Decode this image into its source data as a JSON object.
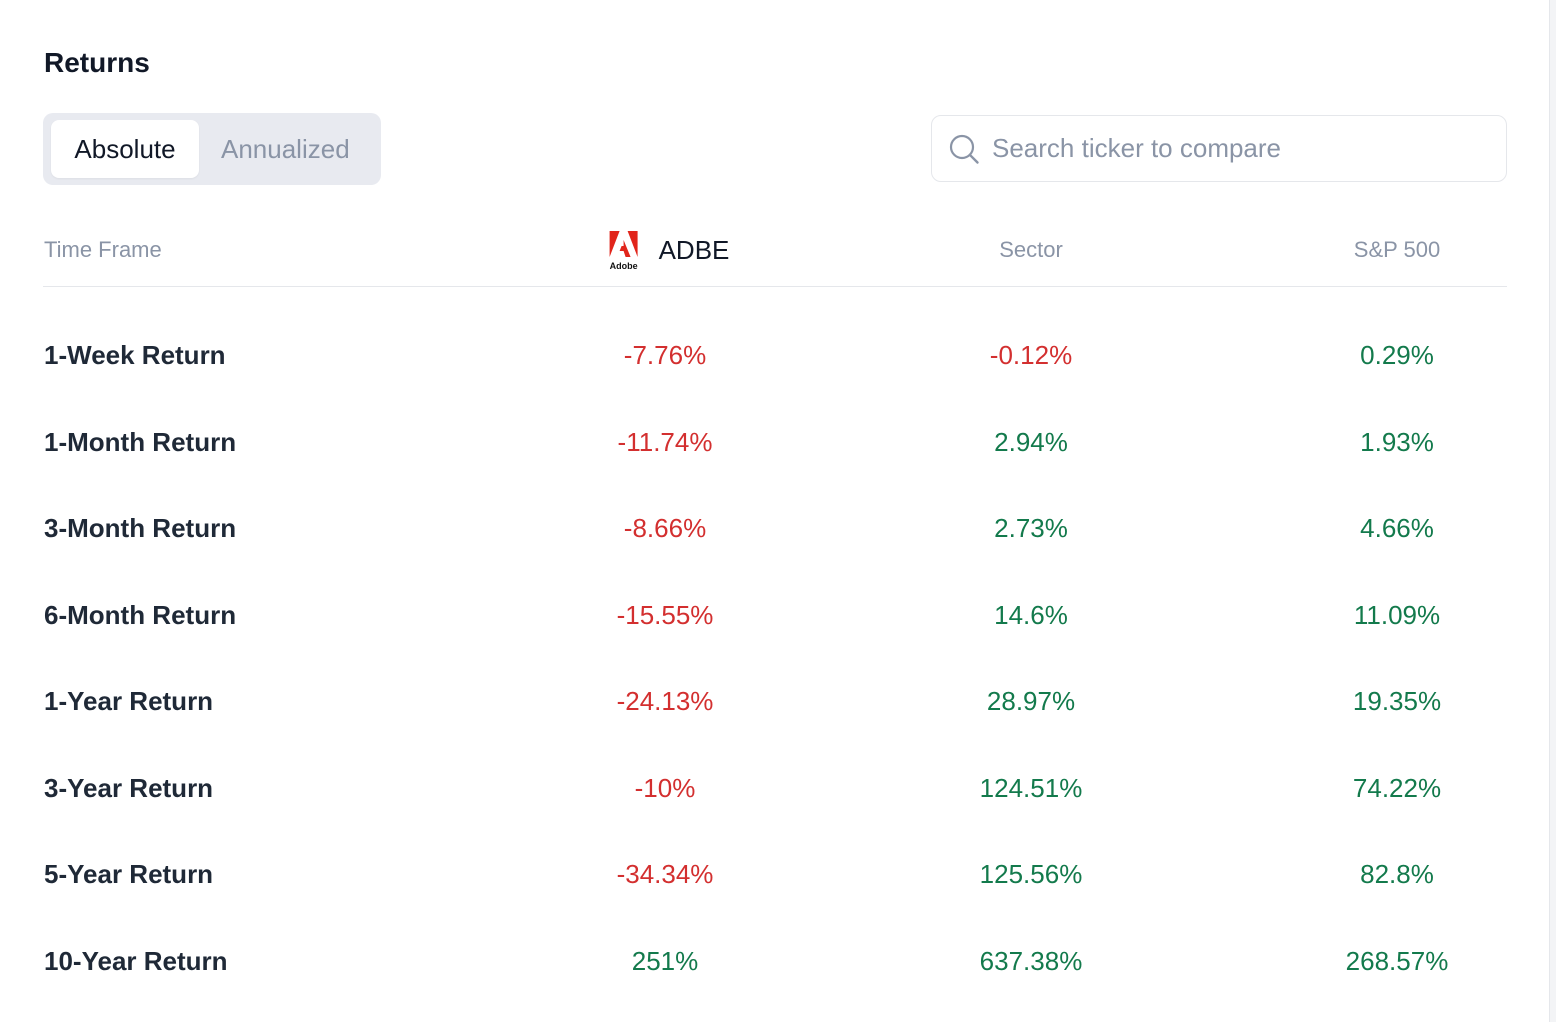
{
  "title": "Returns",
  "toggle": {
    "options": [
      "Absolute",
      "Annualized"
    ],
    "selected": "Absolute"
  },
  "search": {
    "placeholder": "Search ticker to compare",
    "value": "",
    "icon": "search-icon"
  },
  "table": {
    "headers": {
      "timeframe": "Time Frame",
      "ticker": "ADBE",
      "ticker_logo_text": "Adobe",
      "sector": "Sector",
      "index": "S&P 500"
    },
    "colors": {
      "negative": "#d32f2f",
      "positive": "#137a4c",
      "logo": "#e1251b"
    },
    "rows": [
      {
        "label": "1-Week Return",
        "ticker": "-7.76%",
        "sector": "-0.12%",
        "index": "0.29%"
      },
      {
        "label": "1-Month Return",
        "ticker": "-11.74%",
        "sector": "2.94%",
        "index": "1.93%"
      },
      {
        "label": "3-Month Return",
        "ticker": "-8.66%",
        "sector": "2.73%",
        "index": "4.66%"
      },
      {
        "label": "6-Month Return",
        "ticker": "-15.55%",
        "sector": "14.6%",
        "index": "11.09%"
      },
      {
        "label": "1-Year Return",
        "ticker": "-24.13%",
        "sector": "28.97%",
        "index": "19.35%"
      },
      {
        "label": "3-Year Return",
        "ticker": "-10%",
        "sector": "124.51%",
        "index": "74.22%"
      },
      {
        "label": "5-Year Return",
        "ticker": "-34.34%",
        "sector": "125.56%",
        "index": "82.8%"
      },
      {
        "label": "10-Year Return",
        "ticker": "251%",
        "sector": "637.38%",
        "index": "268.57%"
      }
    ]
  }
}
